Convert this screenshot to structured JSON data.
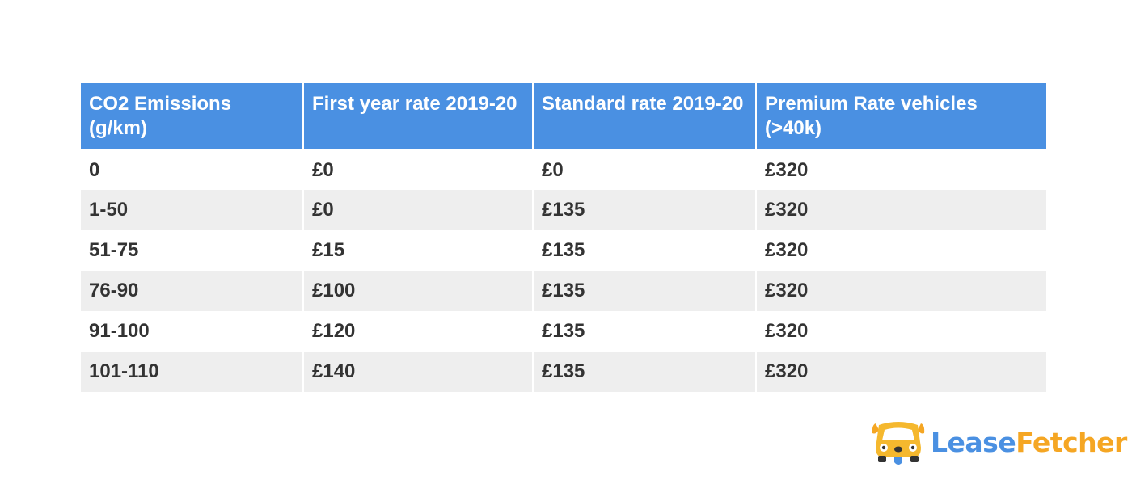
{
  "table": {
    "headers": [
      "CO2 Emissions (g/km)",
      "First year rate 2019-20",
      "Standard rate 2019-20",
      "Premium Rate vehicles (>40k)"
    ],
    "rows": [
      [
        "0",
        "£0",
        "£0",
        "£320"
      ],
      [
        "1-50",
        "£0",
        "£135",
        "£320"
      ],
      [
        "51-75",
        "£15",
        "£135",
        "£320"
      ],
      [
        "76-90",
        "£100",
        "£135",
        "£320"
      ],
      [
        "91-100",
        "£120",
        "£135",
        "£320"
      ],
      [
        "101-110",
        "£140",
        "£135",
        "£320"
      ]
    ]
  },
  "logo": {
    "word1": "Lease",
    "word2": "Fetcher",
    "icon": "dog-car-icon"
  },
  "colors": {
    "header_bg": "#4a90e2",
    "row_alt_bg": "#eeeeee",
    "logo_blue": "#4a90e2",
    "logo_orange": "#f5a623"
  }
}
